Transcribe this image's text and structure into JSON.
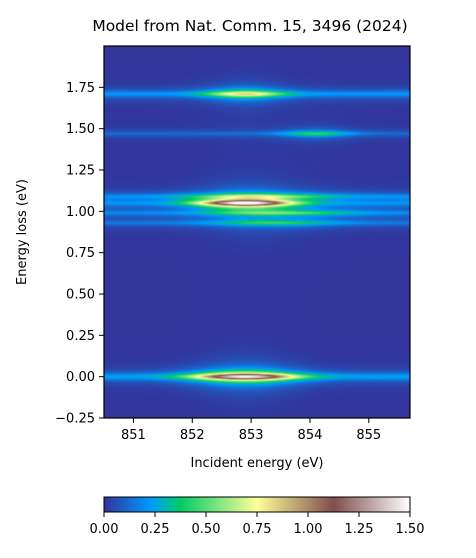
{
  "chart_data": {
    "type": "heatmap",
    "title": "Model from Nat. Comm. 15, 3496 (2024)",
    "xlabel": "Incident energy (eV)",
    "ylabel": "Energy loss (eV)",
    "xlim": [
      850.5,
      855.7
    ],
    "ylim": [
      -0.25,
      2.0
    ],
    "xticks": [
      851,
      852,
      853,
      854,
      855
    ],
    "xtick_labels": [
      "851",
      "852",
      "853",
      "854",
      "855"
    ],
    "yticks": [
      -0.25,
      0.0,
      0.25,
      0.5,
      0.75,
      1.0,
      1.25,
      1.5,
      1.75
    ],
    "ytick_labels": [
      "−0.25",
      "0.00",
      "0.25",
      "0.50",
      "0.75",
      "1.00",
      "1.25",
      "1.50",
      "1.75"
    ],
    "colorbar": {
      "colormap": "terrain",
      "range": [
        0.0,
        1.5
      ],
      "ticks": [
        0.0,
        0.25,
        0.5,
        0.75,
        1.0,
        1.25,
        1.5
      ],
      "tick_labels": [
        "0.00",
        "0.25",
        "0.50",
        "0.75",
        "1.00",
        "1.25",
        "1.50"
      ],
      "orientation": "horizontal"
    },
    "features": [
      {
        "energy_loss": 0.0,
        "incident_peak": 852.9,
        "max_intensity": 1.5,
        "resonance_width": 0.6,
        "loss_width": 0.022,
        "background": 0.25
      },
      {
        "energy_loss": 0.93,
        "incident_peak": 853.4,
        "max_intensity": 0.4,
        "resonance_width": 0.7,
        "loss_width": 0.016,
        "background": 0.14
      },
      {
        "energy_loss": 0.99,
        "incident_peak": 853.6,
        "max_intensity": 0.45,
        "resonance_width": 0.8,
        "loss_width": 0.016,
        "background": 0.16
      },
      {
        "energy_loss": 1.05,
        "incident_peak": 852.9,
        "max_intensity": 1.5,
        "resonance_width": 0.55,
        "loss_width": 0.02,
        "background": 0.18
      },
      {
        "energy_loss": 1.09,
        "incident_peak": 853.2,
        "max_intensity": 0.5,
        "resonance_width": 0.8,
        "loss_width": 0.016,
        "background": 0.18
      },
      {
        "energy_loss": 1.47,
        "incident_peak": 854.1,
        "max_intensity": 0.45,
        "resonance_width": 0.4,
        "loss_width": 0.016,
        "background": 0.12
      },
      {
        "energy_loss": 1.71,
        "incident_peak": 852.9,
        "max_intensity": 0.85,
        "resonance_width": 0.45,
        "loss_width": 0.02,
        "background": 0.22
      }
    ],
    "colors": {
      "colormap_stops": [
        "#333399",
        "#0099ff",
        "#00cc66",
        "#ffff99",
        "#804d4d",
        "#ffffff"
      ]
    }
  }
}
